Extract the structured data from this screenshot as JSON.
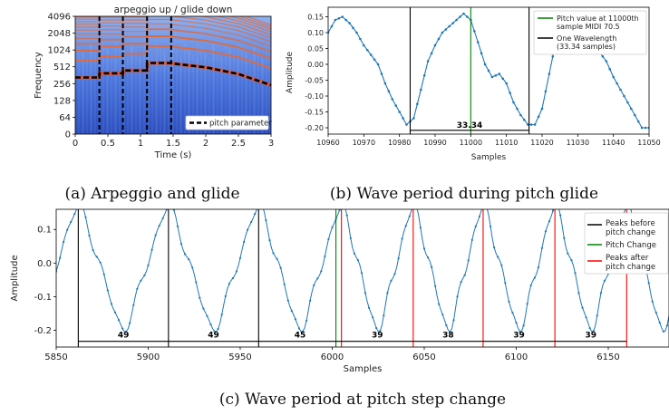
{
  "captions": {
    "a": "(a) Arpeggio and glide",
    "b": "(b) Wave period during pitch glide",
    "c": "(c) Wave period at pitch step change"
  },
  "colors": {
    "wave": "#1f77b4",
    "spec_bg": "#3a66d6",
    "spec_line": "#e06a3a",
    "green": "#008000",
    "red": "#ff0000",
    "black": "#000000"
  },
  "chart_data": [
    {
      "type": "heatmap",
      "title": "arpeggio up / glide down",
      "xlabel": "Time (s)",
      "ylabel": "Frequency",
      "x_ticks": [
        "0",
        "0.5",
        "1",
        "1.5",
        "2",
        "2.5",
        "3"
      ],
      "y_ticks": [
        "0",
        "64",
        "128",
        "256",
        "512",
        "1024",
        "2048",
        "4096"
      ],
      "xlim": [
        0,
        3
      ],
      "y_scale": "log2",
      "segment_boundaries_s": [
        0.37,
        0.73,
        1.1,
        1.47
      ],
      "pitch_parameter": {
        "name": "pitch parameter",
        "times": [
          0,
          0.37,
          0.37,
          0.73,
          0.73,
          1.1,
          1.1,
          1.47,
          1.47,
          2.0,
          2.5,
          3.0
        ],
        "freqs": [
          330,
          330,
          392,
          392,
          440,
          440,
          600,
          600,
          590,
          500,
          380,
          240
        ]
      },
      "legend": [
        "pitch parameter"
      ],
      "legend_position": "bottom-right"
    },
    {
      "type": "line",
      "xlabel": "Samples",
      "ylabel": "Amplitude",
      "xlim": [
        10960,
        11050
      ],
      "ylim": [
        -0.22,
        0.18
      ],
      "x_ticks": [
        "10960",
        "10970",
        "10980",
        "10990",
        "11000",
        "11010",
        "11020",
        "11030",
        "11040",
        "11050"
      ],
      "y_ticks": [
        "0.15",
        "0.10",
        "0.05",
        "0.00",
        "-0.05",
        "-0.10",
        "-0.15",
        "-0.20"
      ],
      "series": [
        {
          "x": [
            10960,
            10962,
            10964,
            10966,
            10968,
            10970,
            10972,
            10974,
            10976,
            10978,
            10980,
            10982,
            10984,
            10986,
            10988,
            10990,
            10992,
            10994,
            10996,
            10998,
            11000,
            11002,
            11004,
            11006,
            11008,
            11010,
            11012,
            11014,
            11016,
            11018,
            11020,
            11022,
            11024,
            11026,
            11028,
            11030,
            11032,
            11034,
            11036,
            11038,
            11040,
            11042,
            11044,
            11046,
            11048,
            11050
          ],
          "y": [
            0.1,
            0.14,
            0.15,
            0.13,
            0.1,
            0.06,
            0.03,
            0.0,
            -0.06,
            -0.11,
            -0.15,
            -0.19,
            -0.17,
            -0.08,
            0.01,
            0.06,
            0.1,
            0.12,
            0.14,
            0.16,
            0.14,
            0.07,
            0.0,
            -0.04,
            -0.03,
            -0.06,
            -0.12,
            -0.16,
            -0.19,
            -0.19,
            -0.14,
            -0.03,
            0.08,
            0.14,
            0.16,
            0.14,
            0.1,
            0.06,
            0.04,
            0.01,
            -0.04,
            -0.08,
            -0.12,
            -0.16,
            -0.2,
            -0.2
          ]
        }
      ],
      "vlines": [
        {
          "x": 10983,
          "color": "black"
        },
        {
          "x": 11000,
          "color": "green"
        },
        {
          "x": 11016.34,
          "color": "black"
        }
      ],
      "period_annotations": [
        {
          "from": 10983,
          "to": 11016.34,
          "label": "33.34"
        }
      ],
      "legend": [
        {
          "label": "Pitch value at 11000th sample MIDI 70.5",
          "color": "green"
        },
        {
          "label": "One Wavelength (33.34 samples)",
          "color": "black"
        }
      ],
      "legend_position": "top-right"
    },
    {
      "type": "line",
      "xlabel": "Samples",
      "ylabel": "Amplitude",
      "xlim": [
        5850,
        6183
      ],
      "ylim": [
        -0.25,
        0.16
      ],
      "x_ticks": [
        "5850",
        "5900",
        "5950",
        "6000",
        "6050",
        "6100",
        "6150"
      ],
      "y_ticks": [
        "0.1",
        "0.0",
        "-0.1",
        "-0.2"
      ],
      "series": [
        {
          "name": "waveform",
          "peaks": [
            5862,
            5911,
            5960,
            6005,
            6044,
            6082,
            6121,
            6160
          ],
          "peak_value": 0.15,
          "trough_value": -0.18
        }
      ],
      "vlines": [
        {
          "x": 5862,
          "color": "black"
        },
        {
          "x": 5911,
          "color": "black"
        },
        {
          "x": 5960,
          "color": "black"
        },
        {
          "x": 6002,
          "color": "green"
        },
        {
          "x": 6005,
          "color": "red"
        },
        {
          "x": 6044,
          "color": "red"
        },
        {
          "x": 6082,
          "color": "red"
        },
        {
          "x": 6121,
          "color": "red"
        },
        {
          "x": 6160,
          "color": "red"
        }
      ],
      "period_annotations": [
        {
          "from": 5862,
          "to": 5911,
          "label": "49"
        },
        {
          "from": 5911,
          "to": 5960,
          "label": "49"
        },
        {
          "from": 5960,
          "to": 6005,
          "label": "45"
        },
        {
          "from": 6005,
          "to": 6044,
          "label": "39"
        },
        {
          "from": 6044,
          "to": 6082,
          "label": "38"
        },
        {
          "from": 6082,
          "to": 6121,
          "label": "39"
        },
        {
          "from": 6121,
          "to": 6160,
          "label": "39"
        }
      ],
      "legend": [
        {
          "label": "Peaks before pitch change",
          "color": "black"
        },
        {
          "label": "Pitch Change",
          "color": "green"
        },
        {
          "label": "Peaks after pitch change",
          "color": "red"
        }
      ],
      "legend_position": "top-right"
    }
  ]
}
